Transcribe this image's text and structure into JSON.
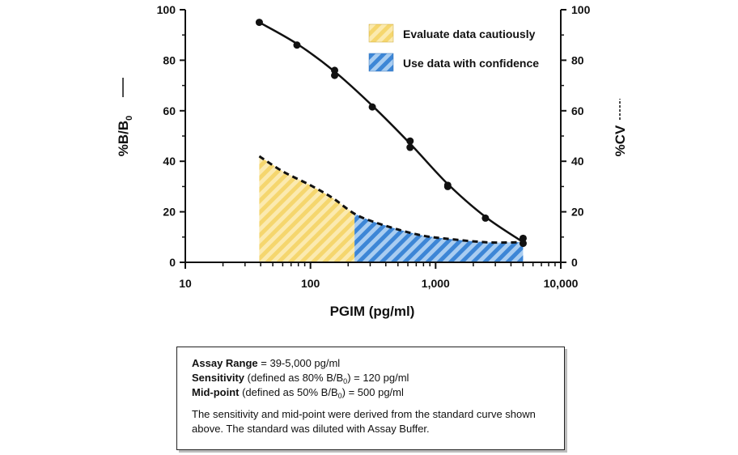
{
  "chart_data": {
    "type": "line",
    "xlabel": "PGIM (pg/ml)",
    "ylabel_left": "%B/B",
    "ylabel_left_sub": "0",
    "ylabel_right": "%CV",
    "x_scale": "log",
    "xlim": [
      10,
      10000
    ],
    "ylim": [
      0,
      100
    ],
    "x_tick_labels": [
      "10",
      "100",
      "1,000",
      "10,000"
    ],
    "x_ticks": [
      10,
      100,
      1000,
      10000
    ],
    "y_tick_labels": [
      "0",
      "20",
      "40",
      "60",
      "80",
      "100"
    ],
    "y_ticks": [
      0,
      20,
      40,
      60,
      80,
      100
    ],
    "series": [
      {
        "name": "%B/B0",
        "style": "solid",
        "axis": "left",
        "points": [
          [
            39,
            95
          ],
          [
            78,
            86
          ],
          [
            156,
            76
          ],
          [
            156,
            74
          ],
          [
            312,
            61.5
          ],
          [
            625,
            48
          ],
          [
            625,
            45.5
          ],
          [
            1250,
            30.5
          ],
          [
            1250,
            30
          ],
          [
            2500,
            17.5
          ],
          [
            5000,
            9.5
          ],
          [
            5000,
            7.5
          ]
        ],
        "curve": [
          [
            39,
            95
          ],
          [
            78,
            86.5
          ],
          [
            156,
            75.5
          ],
          [
            312,
            62
          ],
          [
            625,
            47
          ],
          [
            1250,
            31
          ],
          [
            2500,
            18
          ],
          [
            5000,
            8
          ]
        ]
      },
      {
        "name": "%CV",
        "style": "dashed",
        "axis": "right",
        "curve": [
          [
            39,
            42
          ],
          [
            60,
            36
          ],
          [
            100,
            30.5
          ],
          [
            150,
            25.5
          ],
          [
            220,
            19.5
          ],
          [
            300,
            16.5
          ],
          [
            500,
            13
          ],
          [
            800,
            10.5
          ],
          [
            1250,
            9.3
          ],
          [
            2000,
            8.3
          ],
          [
            3000,
            7.8
          ],
          [
            5000,
            8
          ]
        ]
      }
    ],
    "regions": [
      {
        "label": "Evaluate data cautiously",
        "x_from": 39,
        "x_to": 225,
        "color": "#f5dc82"
      },
      {
        "label": "Use data with confidence",
        "x_from": 225,
        "x_to": 5000,
        "color": "#4a8fd8"
      }
    ],
    "legend_position": "top-right"
  },
  "info": {
    "range_label": "Assay Range",
    "range_value": " = 39-5,000 pg/ml",
    "sensitivity_label": "Sensitivity",
    "sensitivity_def": " (defined as 80% B/B",
    "sensitivity_sub": "0",
    "sensitivity_value": ") = 120 pg/ml",
    "midpoint_label": "Mid-point",
    "midpoint_def": " (defined as 50% B/B",
    "midpoint_sub": "0",
    "midpoint_value": ") = 500 pg/ml",
    "note": "The sensitivity and mid-point were derived from the standard curve shown above. The standard was diluted with Assay Buffer."
  }
}
